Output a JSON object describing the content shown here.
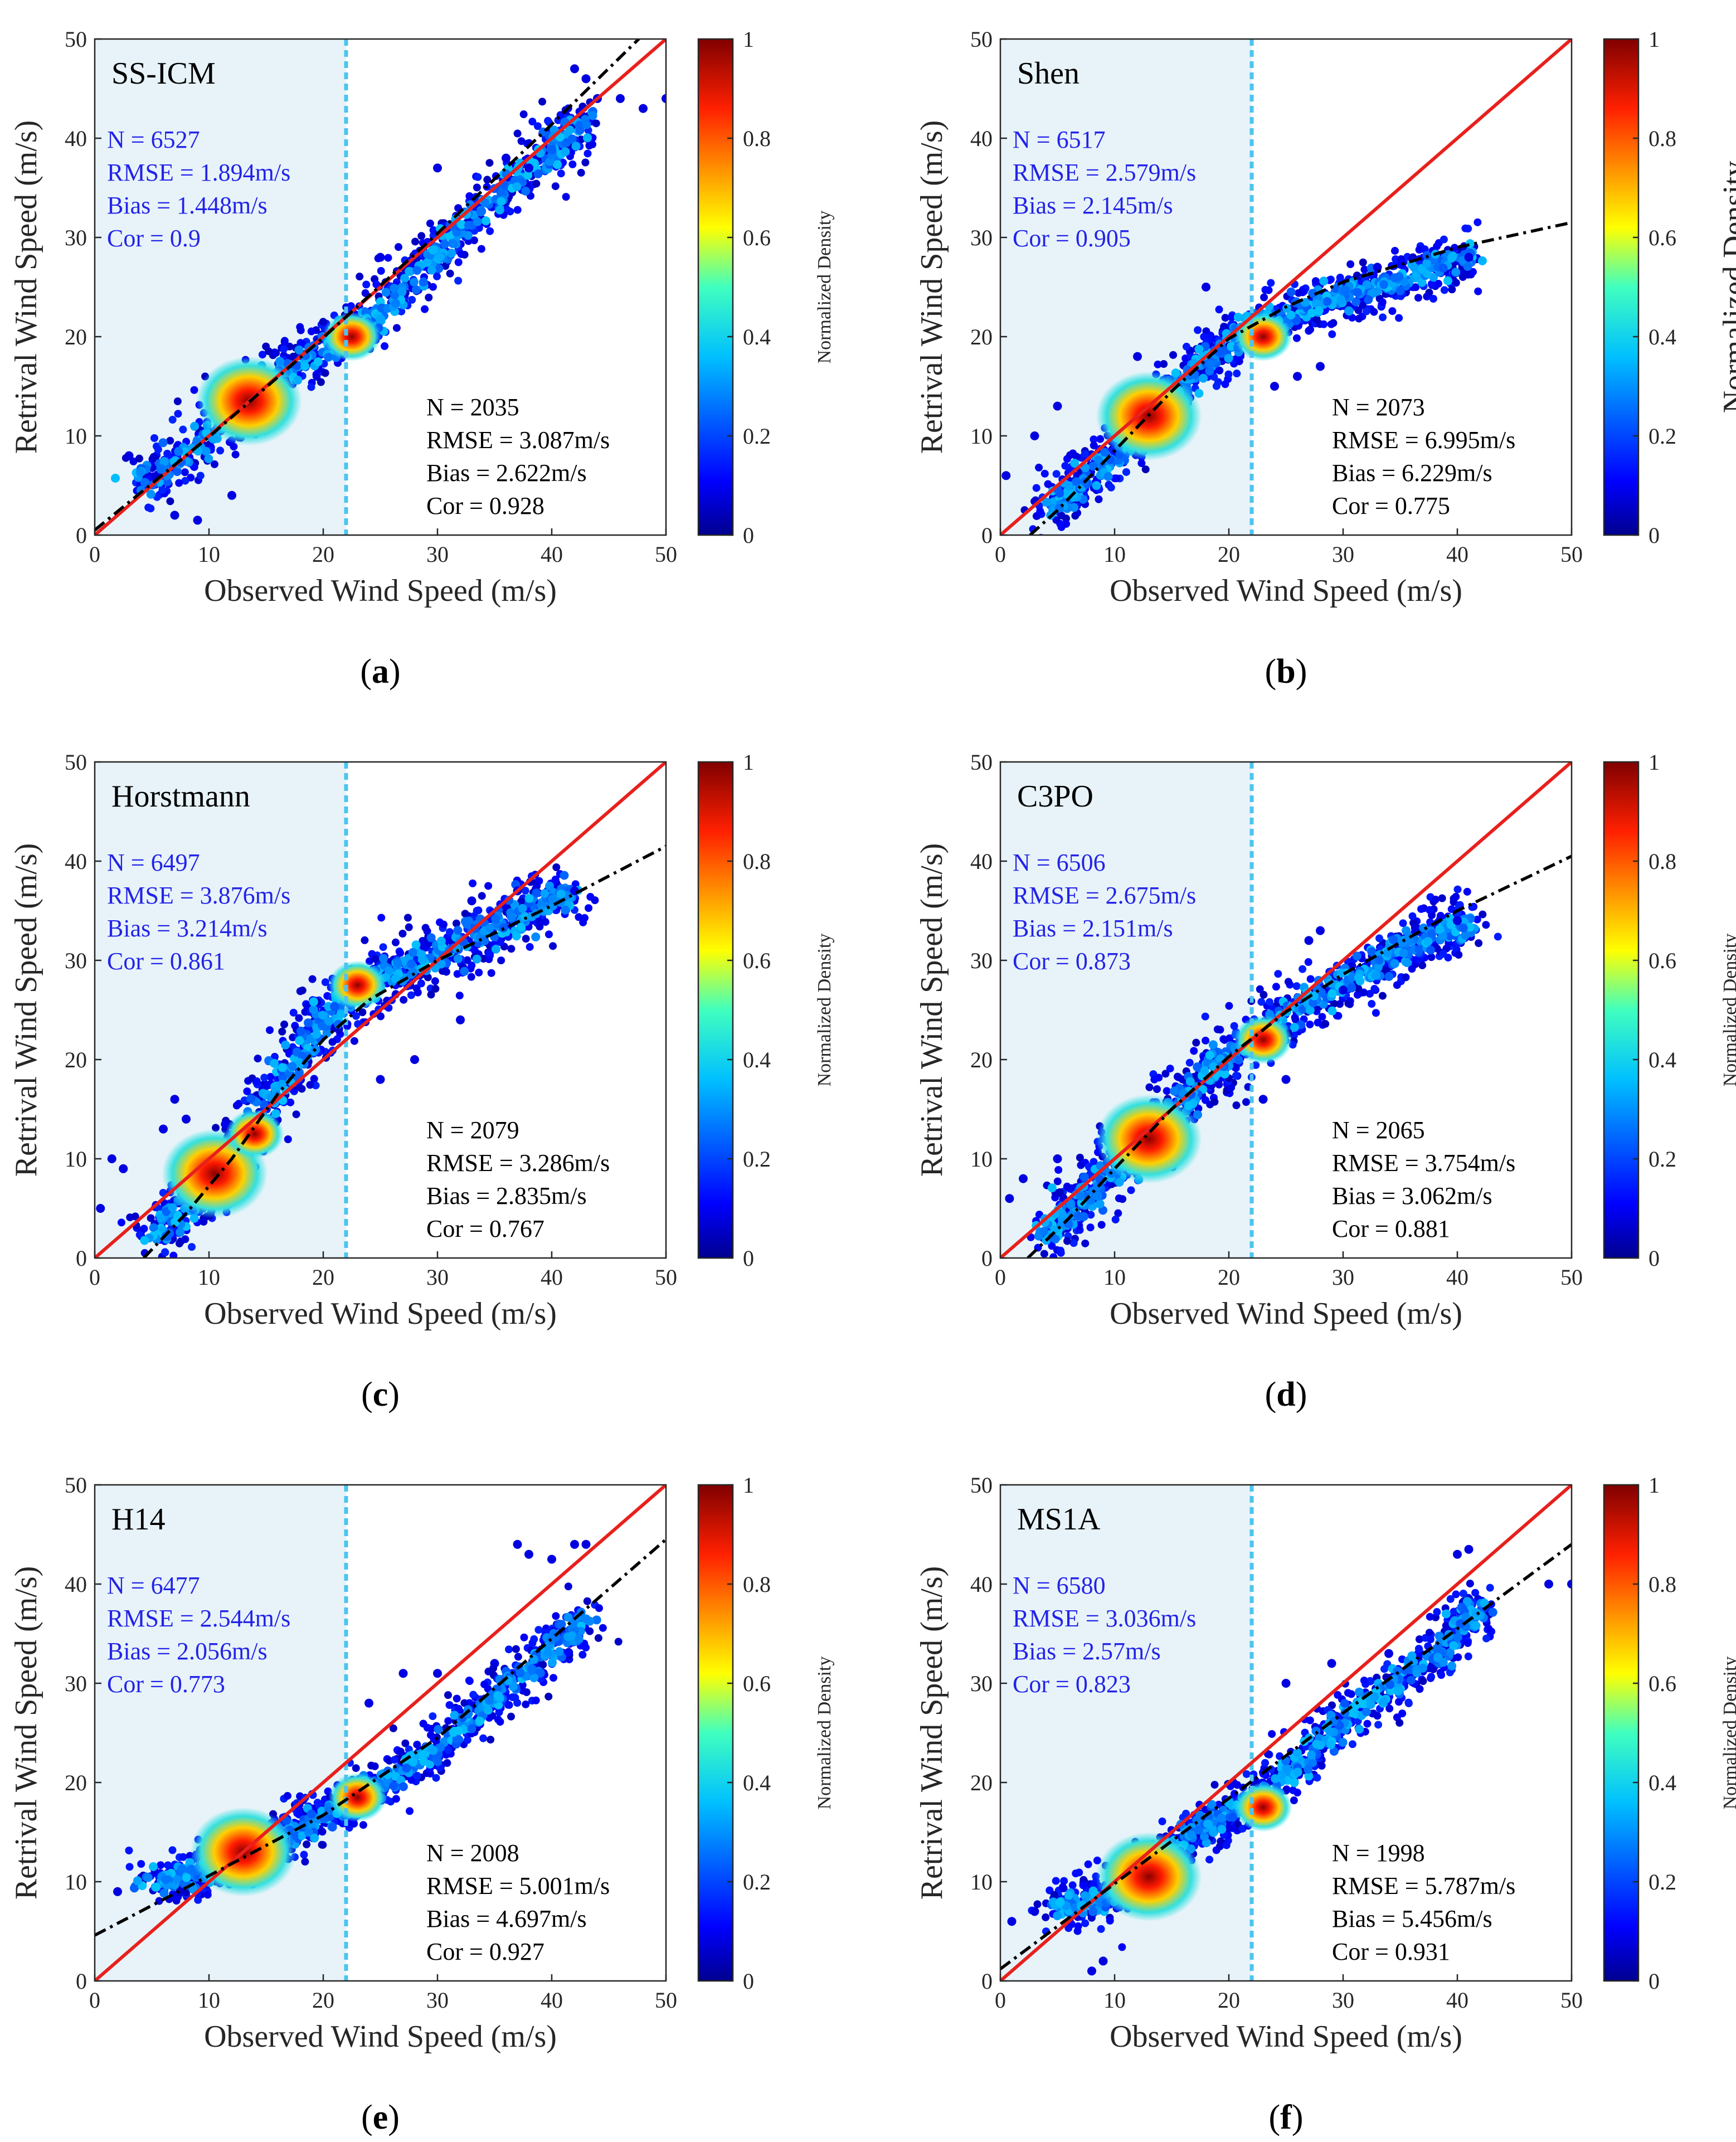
{
  "figure": {
    "x_label": "Observed Wind Speed (m/s)",
    "y_label": "Retrival Wind Speed (m/s)",
    "colorbar_label": "Normalized Density",
    "colorbar_ticks": [
      "0",
      "0.2",
      "0.4",
      "0.6",
      "0.8",
      "1"
    ],
    "split_value": 22,
    "colors": {
      "shade": "#e7f3f9",
      "split_line": "#4cc4ef",
      "one_to_one": "#e8201c",
      "fit_line": "#000000",
      "stats_low": "#2323e8",
      "stats_high": "#000000"
    }
  },
  "chart_data": [
    {
      "type": "scatter",
      "panel_label": "(a)",
      "model": "SS-ICM",
      "xlim": [
        0,
        50
      ],
      "ylim": [
        0,
        50
      ],
      "xticks": [
        0,
        10,
        20,
        30,
        40,
        50
      ],
      "yticks": [
        0,
        10,
        20,
        30,
        40,
        50
      ],
      "stats_low": {
        "N": "N = 6527",
        "RMSE": "RMSE = 1.894m/s",
        "Bias": "Bias = 1.448m/s",
        "Cor": "Cor = 0.9"
      },
      "stats_high": {
        "N": "N = 2035",
        "RMSE": "RMSE = 3.087m/s",
        "Bias": "Bias = 2.622m/s",
        "Cor": "Cor = 0.928"
      },
      "fit": [
        [
          0,
          0.5
        ],
        [
          10,
          9.9
        ],
        [
          20,
          19.9
        ],
        [
          30,
          30.4
        ],
        [
          40,
          41.4
        ],
        [
          48.5,
          51
        ]
      ],
      "hotspots": [
        [
          13.5,
          13.5
        ],
        [
          22.5,
          20
        ]
      ],
      "cloud": [
        [
          4,
          5
        ],
        [
          8,
          8
        ],
        [
          12,
          12.5
        ],
        [
          16,
          16
        ],
        [
          20,
          19
        ],
        [
          24,
          21.5
        ],
        [
          28,
          26
        ],
        [
          32,
          31
        ],
        [
          36,
          35
        ],
        [
          40,
          39
        ],
        [
          43,
          42
        ]
      ],
      "cloud_spread": 2.8,
      "outliers": [
        [
          42,
          47
        ],
        [
          43,
          46
        ],
        [
          44,
          44
        ],
        [
          46,
          44
        ],
        [
          48,
          43
        ],
        [
          50,
          44
        ],
        [
          36,
          38
        ],
        [
          38,
          37
        ],
        [
          7,
          2
        ],
        [
          9,
          1.5
        ],
        [
          12,
          4
        ],
        [
          3,
          8
        ],
        [
          25,
          28
        ],
        [
          30,
          37
        ]
      ],
      "colorbar_label_size": "small"
    },
    {
      "type": "scatter",
      "panel_label": "(b)",
      "model": "Shen",
      "xlim": [
        0,
        50
      ],
      "ylim": [
        0,
        50
      ],
      "xticks": [
        0,
        10,
        20,
        30,
        40,
        50
      ],
      "yticks": [
        0,
        10,
        20,
        30,
        40,
        50
      ],
      "stats_low": {
        "N": "N = 6517",
        "RMSE": "RMSE = 2.579m/s",
        "Bias": "Bias = 2.145m/s",
        "Cor": "Cor = 0.905"
      },
      "stats_high": {
        "N": "N = 2073",
        "RMSE": "RMSE = 6.995m/s",
        "Bias": "Bias = 6.229m/s",
        "Cor": "Cor = 0.775"
      },
      "fit": [
        [
          2.6,
          0
        ],
        [
          5,
          2.5
        ],
        [
          10,
          8.5
        ],
        [
          15,
          14.5
        ],
        [
          20,
          19.8
        ],
        [
          25,
          23
        ],
        [
          30,
          25.5
        ],
        [
          40,
          29
        ],
        [
          50,
          31.5
        ]
      ],
      "hotspots": [
        [
          13,
          12
        ],
        [
          23,
          20
        ]
      ],
      "cloud": [
        [
          4,
          2
        ],
        [
          7,
          5
        ],
        [
          10,
          8.5
        ],
        [
          13,
          12
        ],
        [
          16,
          15.5
        ],
        [
          19,
          18.5
        ],
        [
          22,
          21
        ],
        [
          26,
          22.5
        ],
        [
          30,
          24
        ],
        [
          34,
          25.5
        ],
        [
          38,
          27
        ],
        [
          41,
          28
        ]
      ],
      "cloud_spread": 2.4,
      "outliers": [
        [
          0.5,
          6
        ],
        [
          5,
          13
        ],
        [
          3,
          10
        ],
        [
          24,
          15
        ],
        [
          26,
          16
        ],
        [
          28,
          17
        ],
        [
          33,
          27
        ],
        [
          41,
          28
        ],
        [
          18,
          25
        ],
        [
          12,
          18
        ]
      ],
      "colorbar_label_size": "large"
    },
    {
      "type": "scatter",
      "panel_label": "(c)",
      "model": "Horstmann",
      "xlim": [
        0,
        50
      ],
      "ylim": [
        0,
        50
      ],
      "xticks": [
        0,
        10,
        20,
        30,
        40,
        50
      ],
      "yticks": [
        0,
        10,
        20,
        30,
        40,
        50
      ],
      "stats_low": {
        "N": "N = 6497",
        "RMSE": "RMSE = 3.876m/s",
        "Bias": "Bias = 3.214m/s",
        "Cor": "Cor = 0.861"
      },
      "stats_high": {
        "N": "N = 2079",
        "RMSE": "RMSE = 3.286m/s",
        "Bias": "Bias = 2.835m/s",
        "Cor": "Cor = 0.767"
      },
      "fit": [
        [
          4.3,
          0
        ],
        [
          8,
          4.5
        ],
        [
          12,
          10
        ],
        [
          16,
          16.5
        ],
        [
          20,
          22
        ],
        [
          24,
          26
        ],
        [
          30,
          30
        ],
        [
          40,
          35.5
        ],
        [
          50,
          41.5
        ]
      ],
      "hotspots": [
        [
          10.5,
          8.5
        ],
        [
          14,
          12.5
        ],
        [
          23,
          27.5
        ]
      ],
      "cloud": [
        [
          5,
          2
        ],
        [
          8,
          5
        ],
        [
          11,
          9
        ],
        [
          14,
          14
        ],
        [
          17,
          19
        ],
        [
          20,
          24
        ],
        [
          23,
          27
        ],
        [
          27,
          29
        ],
        [
          31,
          31
        ],
        [
          35,
          33.5
        ],
        [
          39,
          35.5
        ],
        [
          42,
          37
        ]
      ],
      "cloud_spread": 3.2,
      "outliers": [
        [
          0.5,
          5
        ],
        [
          1.5,
          10
        ],
        [
          2.5,
          9
        ],
        [
          6,
          13
        ],
        [
          7,
          16
        ],
        [
          8,
          14
        ],
        [
          33,
          36
        ],
        [
          37,
          37
        ],
        [
          42,
          37
        ],
        [
          25,
          18
        ],
        [
          28,
          20
        ],
        [
          32,
          24
        ]
      ],
      "colorbar_label_size": "small"
    },
    {
      "type": "scatter",
      "panel_label": "(d)",
      "model": "C3PO",
      "xlim": [
        0,
        50
      ],
      "ylim": [
        0,
        50
      ],
      "xticks": [
        0,
        10,
        20,
        30,
        40,
        50
      ],
      "yticks": [
        0,
        10,
        20,
        30,
        40,
        50
      ],
      "stats_low": {
        "N": "N = 6506",
        "RMSE": "RMSE = 2.675m/s",
        "Bias": "Bias = 2.151m/s",
        "Cor": "Cor = 0.873"
      },
      "stats_high": {
        "N": "N = 2065",
        "RMSE": "RMSE = 3.754m/s",
        "Bias": "Bias = 3.062m/s",
        "Cor": "Cor = 0.881"
      },
      "fit": [
        [
          2.4,
          0
        ],
        [
          6,
          4
        ],
        [
          10,
          9
        ],
        [
          15,
          15
        ],
        [
          20,
          20.3
        ],
        [
          25,
          24.8
        ],
        [
          30,
          28.6
        ],
        [
          40,
          35
        ],
        [
          50,
          40.5
        ]
      ],
      "hotspots": [
        [
          13,
          12
        ],
        [
          23,
          22
        ]
      ],
      "cloud": [
        [
          4,
          2.5
        ],
        [
          7,
          5.5
        ],
        [
          10,
          9
        ],
        [
          13,
          12.5
        ],
        [
          16,
          16
        ],
        [
          19,
          19.5
        ],
        [
          22,
          22
        ],
        [
          26,
          25
        ],
        [
          30,
          28
        ],
        [
          34,
          30.5
        ],
        [
          38,
          32.5
        ],
        [
          41,
          34
        ]
      ],
      "cloud_spread": 2.8,
      "outliers": [
        [
          0.8,
          6
        ],
        [
          2,
          8
        ],
        [
          5,
          10
        ],
        [
          23,
          16
        ],
        [
          25,
          18
        ],
        [
          27,
          32
        ],
        [
          28,
          33
        ],
        [
          40,
          34
        ],
        [
          30,
          27
        ]
      ],
      "colorbar_label_size": "small"
    },
    {
      "type": "scatter",
      "panel_label": "(e)",
      "model": "H14",
      "xlim": [
        0,
        50
      ],
      "ylim": [
        0,
        50
      ],
      "xticks": [
        0,
        10,
        20,
        30,
        40,
        50
      ],
      "yticks": [
        0,
        10,
        20,
        30,
        40,
        50
      ],
      "stats_low": {
        "N": "N = 6477",
        "RMSE": "RMSE = 2.544m/s",
        "Bias": "Bias = 2.056m/s",
        "Cor": "Cor = 0.773"
      },
      "stats_high": {
        "N": "N = 2008",
        "RMSE": "RMSE = 5.001m/s",
        "Bias": "Bias = 4.697m/s",
        "Cor": "Cor = 0.927"
      },
      "fit": [
        [
          0,
          4.6
        ],
        [
          10,
          10.6
        ],
        [
          20,
          16.7
        ],
        [
          30,
          24.5
        ],
        [
          40,
          34.5
        ],
        [
          50,
          44.5
        ]
      ],
      "hotspots": [
        [
          13,
          13
        ],
        [
          23,
          18.5
        ]
      ],
      "cloud": [
        [
          5,
          10
        ],
        [
          8,
          10.5
        ],
        [
          11,
          11.5
        ],
        [
          14,
          13.5
        ],
        [
          17,
          15
        ],
        [
          20,
          16.5
        ],
        [
          24,
          19
        ],
        [
          28,
          22
        ],
        [
          32,
          25.5
        ],
        [
          36,
          29.5
        ],
        [
          40,
          33.5
        ],
        [
          43,
          37
        ]
      ],
      "cloud_spread": 2.3,
      "outliers": [
        [
          2,
          9
        ],
        [
          37,
          44
        ],
        [
          38,
          43
        ],
        [
          40,
          42.5
        ],
        [
          42,
          44
        ],
        [
          43,
          44
        ],
        [
          24,
          28
        ],
        [
          27,
          31
        ],
        [
          30,
          31
        ],
        [
          35,
          32
        ]
      ],
      "colorbar_label_size": "small"
    },
    {
      "type": "scatter",
      "panel_label": "(f)",
      "model": "MS1A",
      "xlim": [
        0,
        50
      ],
      "ylim": [
        0,
        50
      ],
      "xticks": [
        0,
        10,
        20,
        30,
        40,
        50
      ],
      "yticks": [
        0,
        10,
        20,
        30,
        40,
        50
      ],
      "stats_low": {
        "N": "N = 6580",
        "RMSE": "RMSE = 3.036m/s",
        "Bias": "Bias = 2.57m/s",
        "Cor": "Cor = 0.823"
      },
      "stats_high": {
        "N": "N = 1998",
        "RMSE": "RMSE = 5.787m/s",
        "Bias": "Bias = 5.456m/s",
        "Cor": "Cor = 0.931"
      },
      "fit": [
        [
          0,
          1.2
        ],
        [
          10,
          9.8
        ],
        [
          20,
          18.4
        ],
        [
          30,
          27
        ],
        [
          40,
          35.5
        ],
        [
          50,
          44
        ]
      ],
      "hotspots": [
        [
          13,
          10.5
        ],
        [
          23,
          17.5
        ]
      ],
      "cloud": [
        [
          5,
          7.5
        ],
        [
          8,
          8
        ],
        [
          11,
          9.5
        ],
        [
          14,
          12
        ],
        [
          17,
          15
        ],
        [
          20,
          17
        ],
        [
          24,
          19.5
        ],
        [
          28,
          24
        ],
        [
          32,
          28
        ],
        [
          36,
          31
        ],
        [
          40,
          35
        ],
        [
          42,
          38
        ]
      ],
      "cloud_spread": 2.4,
      "outliers": [
        [
          1,
          6
        ],
        [
          3,
          7
        ],
        [
          8,
          1
        ],
        [
          9,
          2
        ],
        [
          40,
          43
        ],
        [
          41,
          43.5
        ],
        [
          50,
          40
        ],
        [
          48,
          40
        ],
        [
          25,
          30
        ],
        [
          29,
          32
        ],
        [
          34,
          33
        ]
      ],
      "colorbar_label_size": "small"
    }
  ]
}
